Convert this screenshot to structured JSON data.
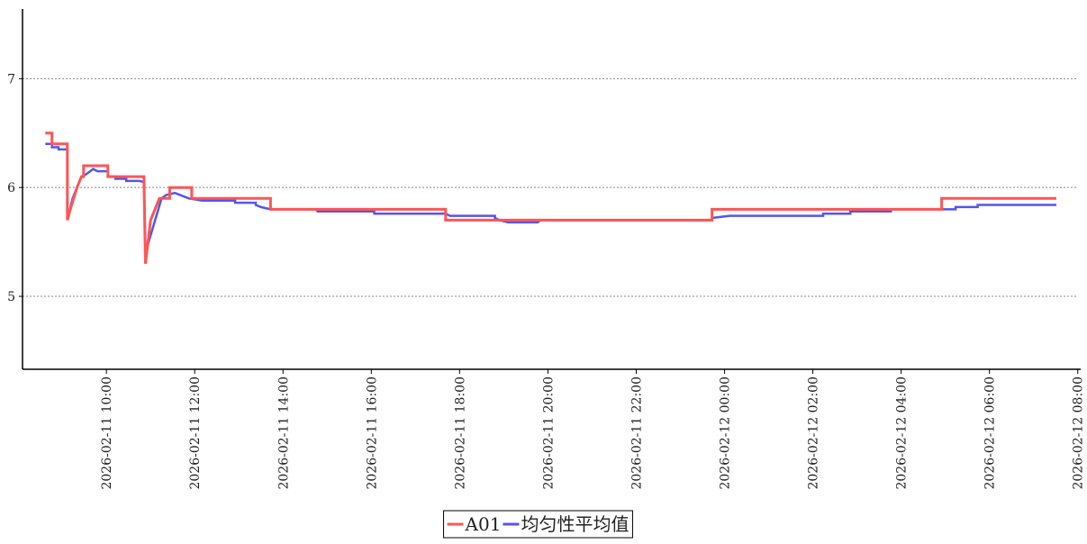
{
  "chart_data": {
    "type": "line",
    "xlim": [
      "2026-02-11 08:06",
      "2026-02-12 08:04"
    ],
    "xticks": [
      "2026-02-11 10:00",
      "2026-02-11 12:00",
      "2026-02-11 14:00",
      "2026-02-11 16:00",
      "2026-02-11 18:00",
      "2026-02-11 20:00",
      "2026-02-11 22:00",
      "2026-02-12 00:00",
      "2026-02-12 02:00",
      "2026-02-12 04:00",
      "2026-02-12 06:00",
      "2026-02-12 08:00"
    ],
    "ylim": [
      4.33,
      7.64
    ],
    "yticks": [
      5,
      6,
      7
    ],
    "grid": true,
    "legend": "bottom",
    "series": [
      {
        "name": "A01",
        "color": "#ff5555",
        "x": [
          "2026-02-11 08:37",
          "2026-02-11 08:46",
          "2026-02-11 08:46",
          "2026-02-11 09:07",
          "2026-02-11 09:07",
          "2026-02-11 09:11",
          "2026-02-11 09:20",
          "2026-02-11 09:26",
          "2026-02-11 09:29",
          "2026-02-11 09:29",
          "2026-02-11 10:02",
          "2026-02-11 10:02",
          "2026-02-11 10:51",
          "2026-02-11 10:53",
          "2026-02-11 11:00",
          "2026-02-11 11:12",
          "2026-02-11 11:26",
          "2026-02-11 11:26",
          "2026-02-11 11:56",
          "2026-02-11 11:56",
          "2026-02-11 13:43",
          "2026-02-11 13:43",
          "2026-02-11 17:41",
          "2026-02-11 17:41",
          "2026-02-11 23:43",
          "2026-02-11 23:43",
          "2026-02-12 04:55",
          "2026-02-12 04:55",
          "2026-02-12 07:31"
        ],
        "values": [
          6.5,
          6.5,
          6.4,
          6.4,
          5.7,
          5.8,
          6.0,
          6.1,
          6.1,
          6.2,
          6.2,
          6.1,
          6.1,
          5.3,
          5.7,
          5.9,
          5.9,
          6.0,
          6.0,
          5.9,
          5.9,
          5.8,
          5.8,
          5.7,
          5.7,
          5.8,
          5.8,
          5.9,
          5.9
        ]
      },
      {
        "name": "均匀性平均值",
        "color": "#5555ee",
        "x": [
          "2026-02-11 08:37",
          "2026-02-11 08:46",
          "2026-02-11 08:46",
          "2026-02-11 08:55",
          "2026-02-11 08:55",
          "2026-02-11 09:07",
          "2026-02-11 09:07",
          "2026-02-11 09:14",
          "2026-02-11 09:26",
          "2026-02-11 09:32",
          "2026-02-11 09:38",
          "2026-02-11 09:42",
          "2026-02-11 09:48",
          "2026-02-11 10:02",
          "2026-02-11 10:02",
          "2026-02-11 10:12",
          "2026-02-11 10:12",
          "2026-02-11 10:27",
          "2026-02-11 10:27",
          "2026-02-11 10:45",
          "2026-02-11 10:51",
          "2026-02-11 10:53",
          "2026-02-11 11:15",
          "2026-02-11 11:21",
          "2026-02-11 11:33",
          "2026-02-11 11:52",
          "2026-02-11 12:10",
          "2026-02-11 12:55",
          "2026-02-11 12:55",
          "2026-02-11 13:23",
          "2026-02-11 13:23",
          "2026-02-11 13:30",
          "2026-02-11 13:43",
          "2026-02-11 14:45",
          "2026-02-11 14:47",
          "2026-02-11 16:04",
          "2026-02-11 16:04",
          "2026-02-11 17:41",
          "2026-02-11 17:47",
          "2026-02-11 18:48",
          "2026-02-11 18:48",
          "2026-02-11 18:54",
          "2026-02-11 19:06",
          "2026-02-11 19:46",
          "2026-02-11 19:50",
          "2026-02-11 23:43",
          "2026-02-11 23:43",
          "2026-02-12 00:07",
          "2026-02-12 02:14",
          "2026-02-12 02:14",
          "2026-02-12 02:51",
          "2026-02-12 02:51",
          "2026-02-12 03:46",
          "2026-02-12 03:46",
          "2026-02-12 05:14",
          "2026-02-12 05:14",
          "2026-02-12 05:44",
          "2026-02-12 05:44",
          "2026-02-12 07:31"
        ],
        "values": [
          6.4,
          6.4,
          6.37,
          6.37,
          6.35,
          6.35,
          5.7,
          5.9,
          6.1,
          6.12,
          6.15,
          6.17,
          6.15,
          6.15,
          6.1,
          6.1,
          6.08,
          6.08,
          6.06,
          6.06,
          6.05,
          5.4,
          5.9,
          5.93,
          5.95,
          5.9,
          5.88,
          5.88,
          5.86,
          5.86,
          5.84,
          5.82,
          5.8,
          5.8,
          5.78,
          5.78,
          5.76,
          5.76,
          5.74,
          5.74,
          5.72,
          5.7,
          5.68,
          5.68,
          5.7,
          5.7,
          5.72,
          5.74,
          5.74,
          5.76,
          5.76,
          5.78,
          5.78,
          5.8,
          5.8,
          5.82,
          5.82,
          5.84,
          5.84
        ]
      }
    ]
  }
}
